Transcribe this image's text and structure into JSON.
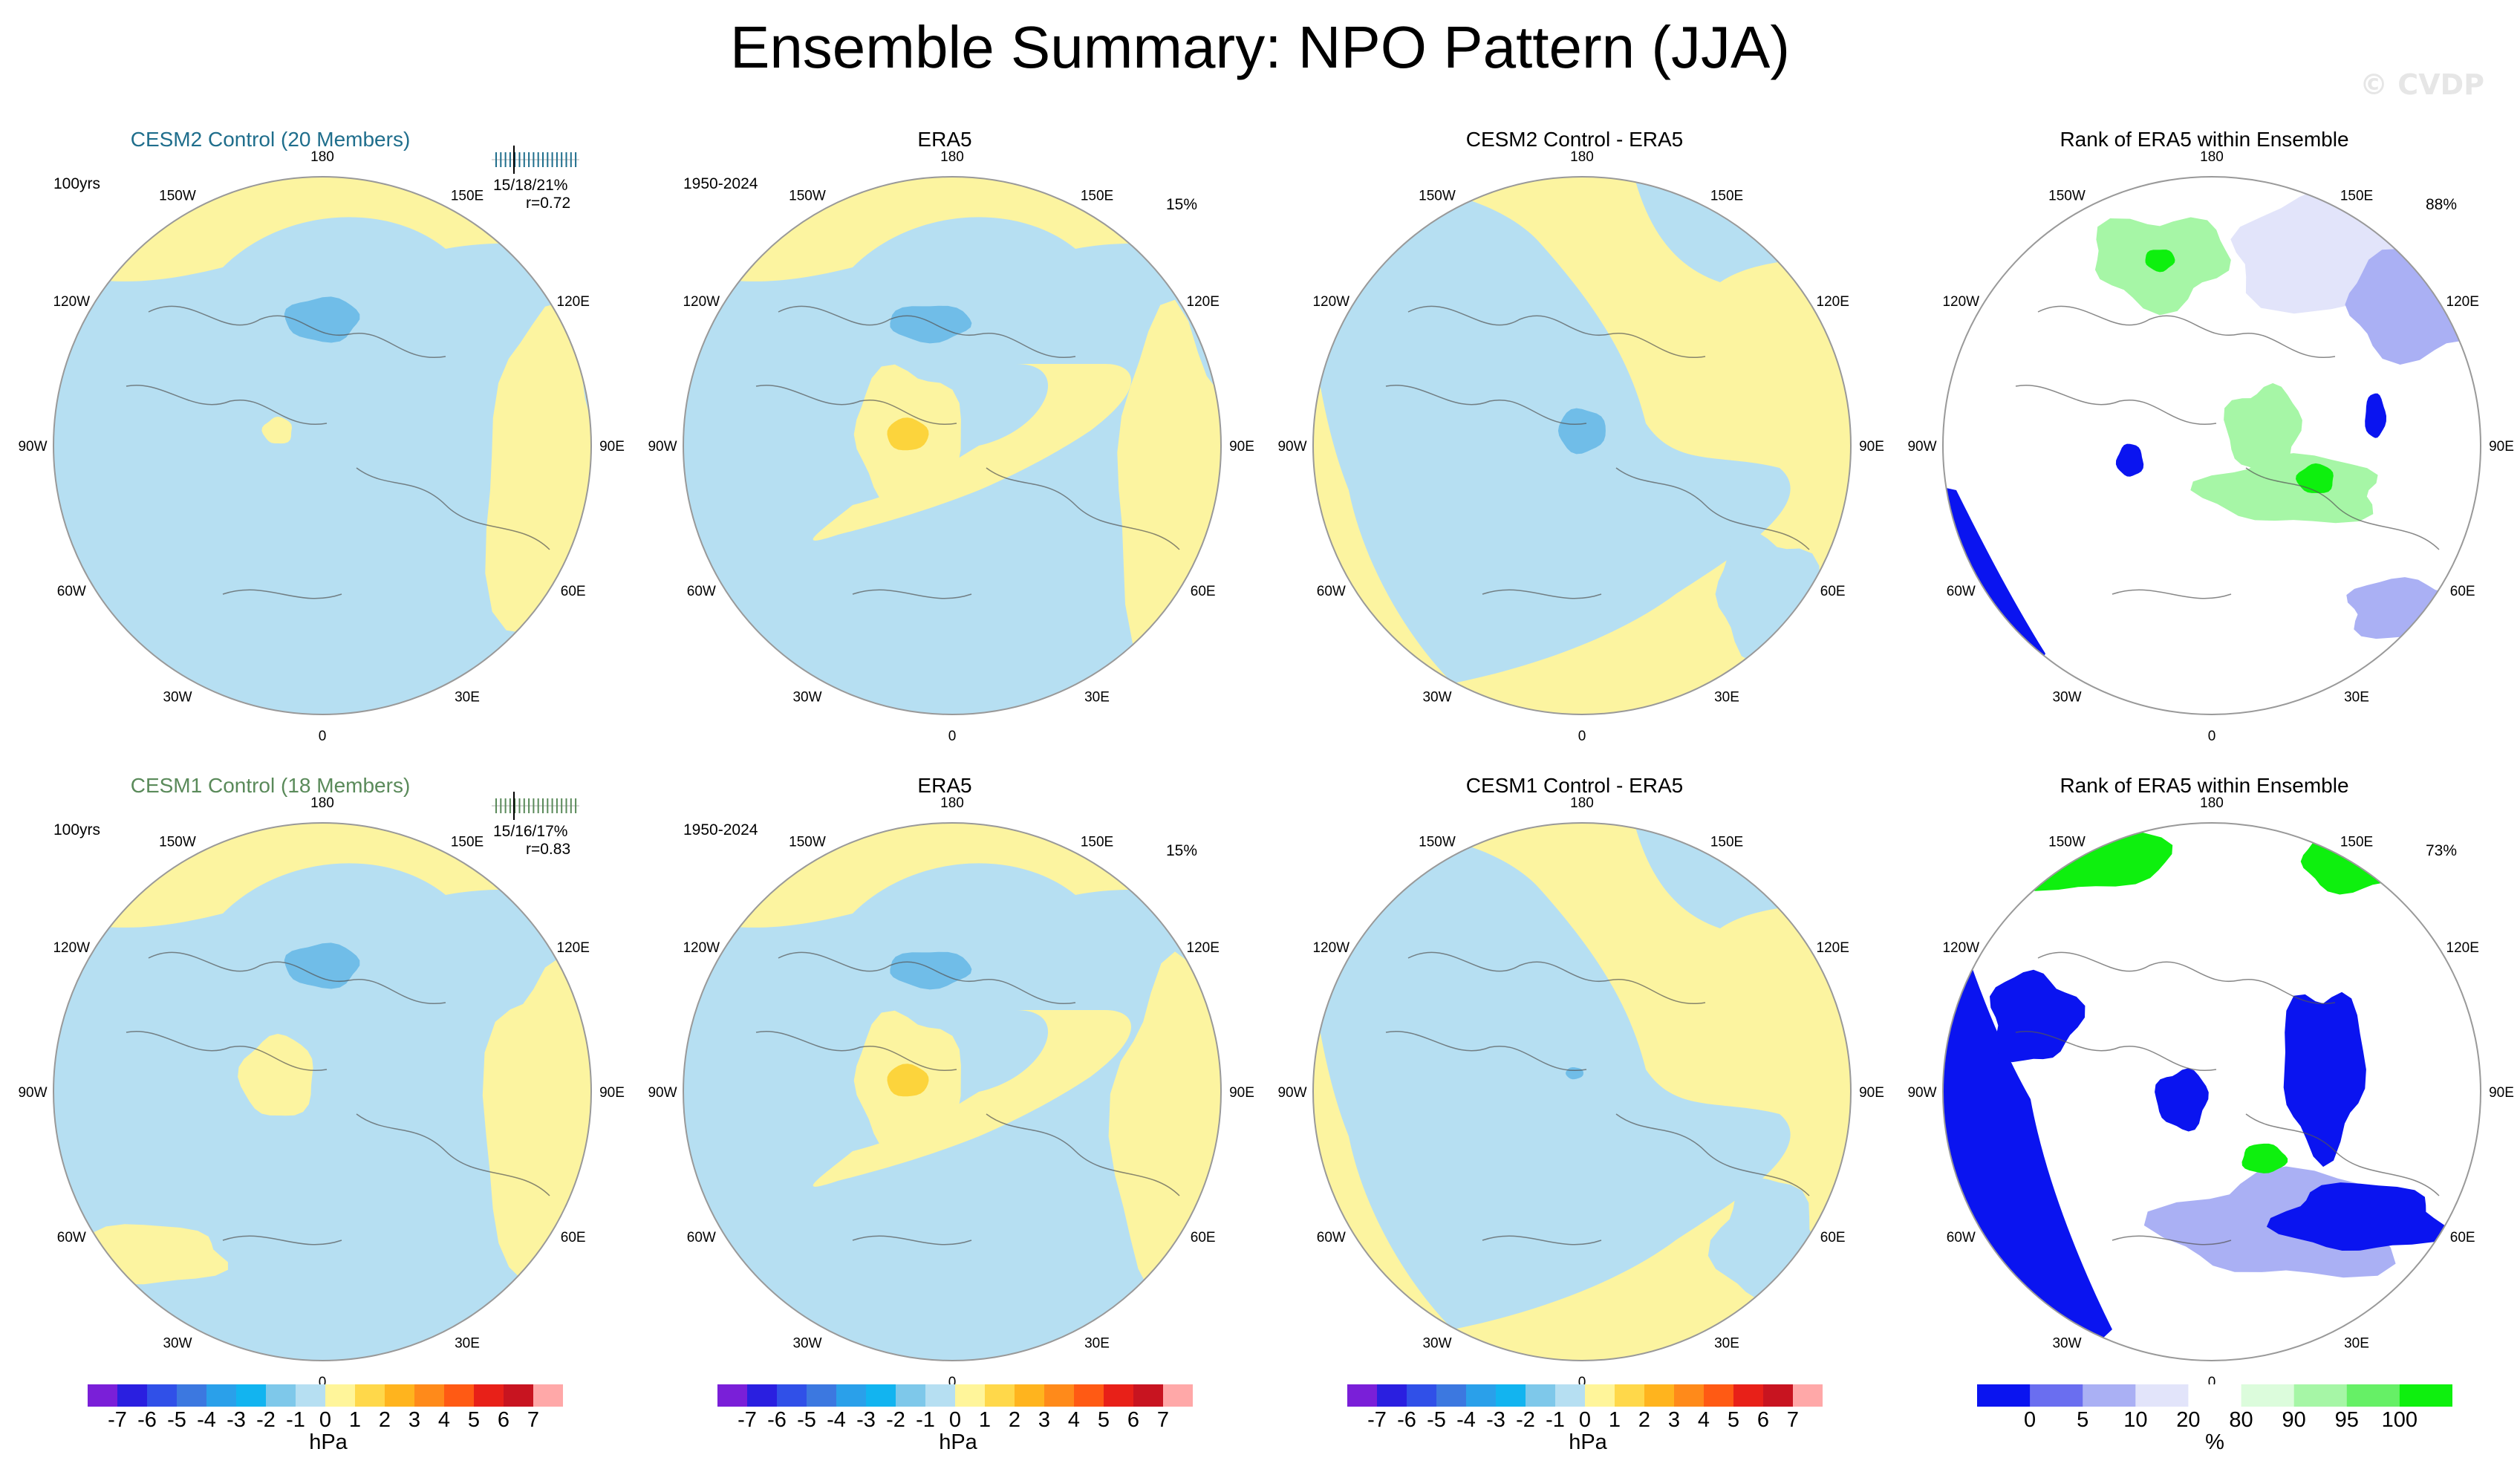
{
  "title": "Ensemble Summary: NPO Pattern (JJA)",
  "watermark": "© CVDP",
  "longitude_labels": [
    "180",
    "150E",
    "120E",
    "90E",
    "60E",
    "30E",
    "0",
    "30W",
    "60W",
    "90W",
    "120W",
    "150W"
  ],
  "panels": [
    {
      "title": "CESM2 Control (20 Members)",
      "title_color": "#1f6e8c",
      "left": "100yrs",
      "right": "15/18/21%",
      "right2": "r=0.72",
      "type": "pattern",
      "tick_color": "#1f6e8c"
    },
    {
      "title": "ERA5",
      "title_color": "#000000",
      "left": "1950-2024",
      "right": "15%",
      "right2": "",
      "type": "pattern"
    },
    {
      "title": "CESM2 Control - ERA5",
      "title_color": "#000000",
      "left": "",
      "right": "",
      "right2": "",
      "type": "diff"
    },
    {
      "title": "Rank of ERA5 within Ensemble",
      "title_color": "#000000",
      "left": "",
      "right": "88%",
      "right2": "",
      "type": "rank"
    },
    {
      "title": "CESM1 Control (18 Members)",
      "title_color": "#5a8a5a",
      "left": "100yrs",
      "right": "15/16/17%",
      "right2": "r=0.83",
      "type": "pattern",
      "tick_color": "#5a8a5a"
    },
    {
      "title": "ERA5",
      "title_color": "#000000",
      "left": "1950-2024",
      "right": "15%",
      "right2": "",
      "type": "pattern"
    },
    {
      "title": "CESM1 Control - ERA5",
      "title_color": "#000000",
      "left": "",
      "right": "",
      "right2": "",
      "type": "diff"
    },
    {
      "title": "Rank of ERA5 within Ensemble",
      "title_color": "#000000",
      "left": "",
      "right": "73%",
      "right2": "",
      "type": "rank"
    }
  ],
  "colorbars": [
    {
      "unit": "hPa",
      "labels": [
        "-7",
        "-6",
        "-5",
        "-4",
        "-3",
        "-2",
        "-1",
        "0",
        "1",
        "2",
        "3",
        "4",
        "5",
        "6",
        "7"
      ],
      "colors": [
        "#7a1fd8",
        "#2a1fe0",
        "#3050e8",
        "#3c78e0",
        "#2aa0ea",
        "#12b4f0",
        "#7ec8ea",
        "#b6dff2",
        "#fff59a",
        "#ffd84a",
        "#ffb41e",
        "#ff8a1a",
        "#ff5a14",
        "#e82018",
        "#c81420",
        "#ffa8a8"
      ]
    },
    {
      "unit": "hPa",
      "labels": [
        "-7",
        "-6",
        "-5",
        "-4",
        "-3",
        "-2",
        "-1",
        "0",
        "1",
        "2",
        "3",
        "4",
        "5",
        "6",
        "7"
      ],
      "colors": [
        "#7a1fd8",
        "#2a1fe0",
        "#3050e8",
        "#3c78e0",
        "#2aa0ea",
        "#12b4f0",
        "#7ec8ea",
        "#b6dff2",
        "#fff59a",
        "#ffd84a",
        "#ffb41e",
        "#ff8a1a",
        "#ff5a14",
        "#e82018",
        "#c81420",
        "#ffa8a8"
      ]
    },
    {
      "unit": "hPa",
      "labels": [
        "-7",
        "-6",
        "-5",
        "-4",
        "-3",
        "-2",
        "-1",
        "0",
        "1",
        "2",
        "3",
        "4",
        "5",
        "6",
        "7"
      ],
      "colors": [
        "#7a1fd8",
        "#2a1fe0",
        "#3050e8",
        "#3c78e0",
        "#2aa0ea",
        "#12b4f0",
        "#7ec8ea",
        "#b6dff2",
        "#fff59a",
        "#ffd84a",
        "#ffb41e",
        "#ff8a1a",
        "#ff5a14",
        "#e82018",
        "#c81420",
        "#ffa8a8"
      ]
    },
    {
      "unit": "%",
      "labels": [
        "0",
        "5",
        "10",
        "20",
        "80",
        "90",
        "95",
        "100"
      ],
      "colors": [
        "#0a14f0",
        "#6a6ef0",
        "#aab0f4",
        "#e2e4fa",
        "#ffffff",
        "#dcfcdc",
        "#a6f6a6",
        "#66f066",
        "#0ef00e"
      ]
    }
  ],
  "map_colors": {
    "pos": "#fcf4a0",
    "neg": "#b6dff2",
    "neg2": "#70bde8",
    "pos2": "#fcd43c",
    "rank_low": "#0a14f0",
    "rank_mid": "#aab0f4",
    "rank_light": "#e2e4fa",
    "rank_green": "#0ef00e",
    "rank_lgreen": "#a6f6a6"
  }
}
